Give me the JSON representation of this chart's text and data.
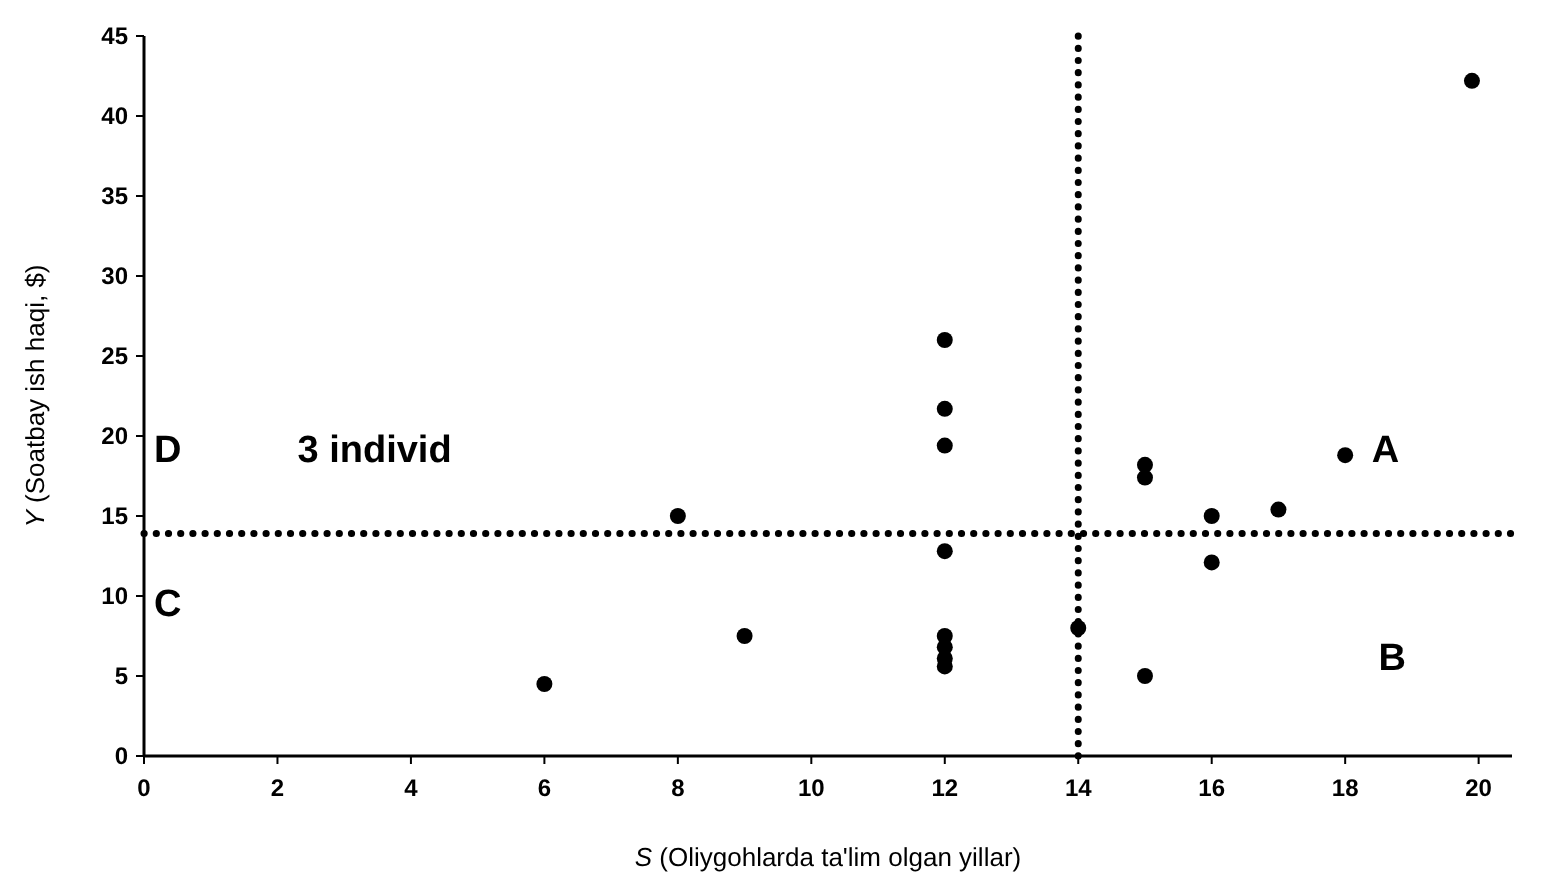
{
  "chart_data": {
    "type": "scatter",
    "xlabel": "S (Oliygohlarda ta'lim olgan yillar)",
    "ylabel": "Y (Soatbay ish haqi, $)",
    "x": [
      6,
      8,
      9,
      12,
      12,
      12,
      12,
      12,
      12,
      12,
      12,
      14,
      15,
      15,
      15,
      16,
      16,
      17,
      18,
      19.9
    ],
    "series": [
      {
        "color": "#000000",
        "values": [
          4.5,
          15,
          7.5,
          26,
          21.7,
          19.4,
          12.8,
          7.5,
          6.8,
          6.1,
          5.6,
          8,
          18.2,
          17.4,
          5,
          15,
          12.1,
          15.4,
          18.8,
          42.2
        ]
      }
    ],
    "marker": "circle",
    "xlim": [
      0,
      20.5
    ],
    "xticks": [
      0,
      2,
      4,
      6,
      8,
      10,
      12,
      14,
      16,
      18,
      20
    ],
    "ylim": [
      0,
      45
    ],
    "yticks": [
      0,
      5,
      10,
      15,
      20,
      25,
      30,
      35,
      40,
      45
    ],
    "ref_lines": [
      {
        "axis": "y",
        "value": 13.9,
        "color": "#000000",
        "line_style": "dotted"
      },
      {
        "axis": "x",
        "value": 14,
        "color": "#000000",
        "line_style": "dotted"
      }
    ],
    "annotations": [
      "D",
      "3 individ",
      "C",
      "A",
      "B"
    ]
  }
}
